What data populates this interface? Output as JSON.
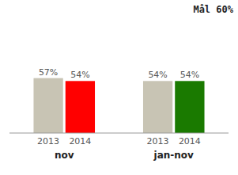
{
  "chart_data": {
    "type": "bar",
    "categories": [
      "nov",
      "jan-nov"
    ],
    "series": [
      {
        "name": "2013",
        "color": "#c8c4b4",
        "values": [
          57,
          54
        ],
        "value_labels": [
          "57%",
          "54%"
        ]
      },
      {
        "name": "2014",
        "colors": [
          "#ff0000",
          "#1a7a00"
        ],
        "values": [
          54,
          54
        ],
        "value_labels": [
          "54%",
          "54%"
        ]
      }
    ],
    "ylim": [
      0,
      120
    ],
    "data_labels": true,
    "tick_labels": false,
    "grid": false,
    "annotations": [
      "Mål 60%"
    ]
  }
}
